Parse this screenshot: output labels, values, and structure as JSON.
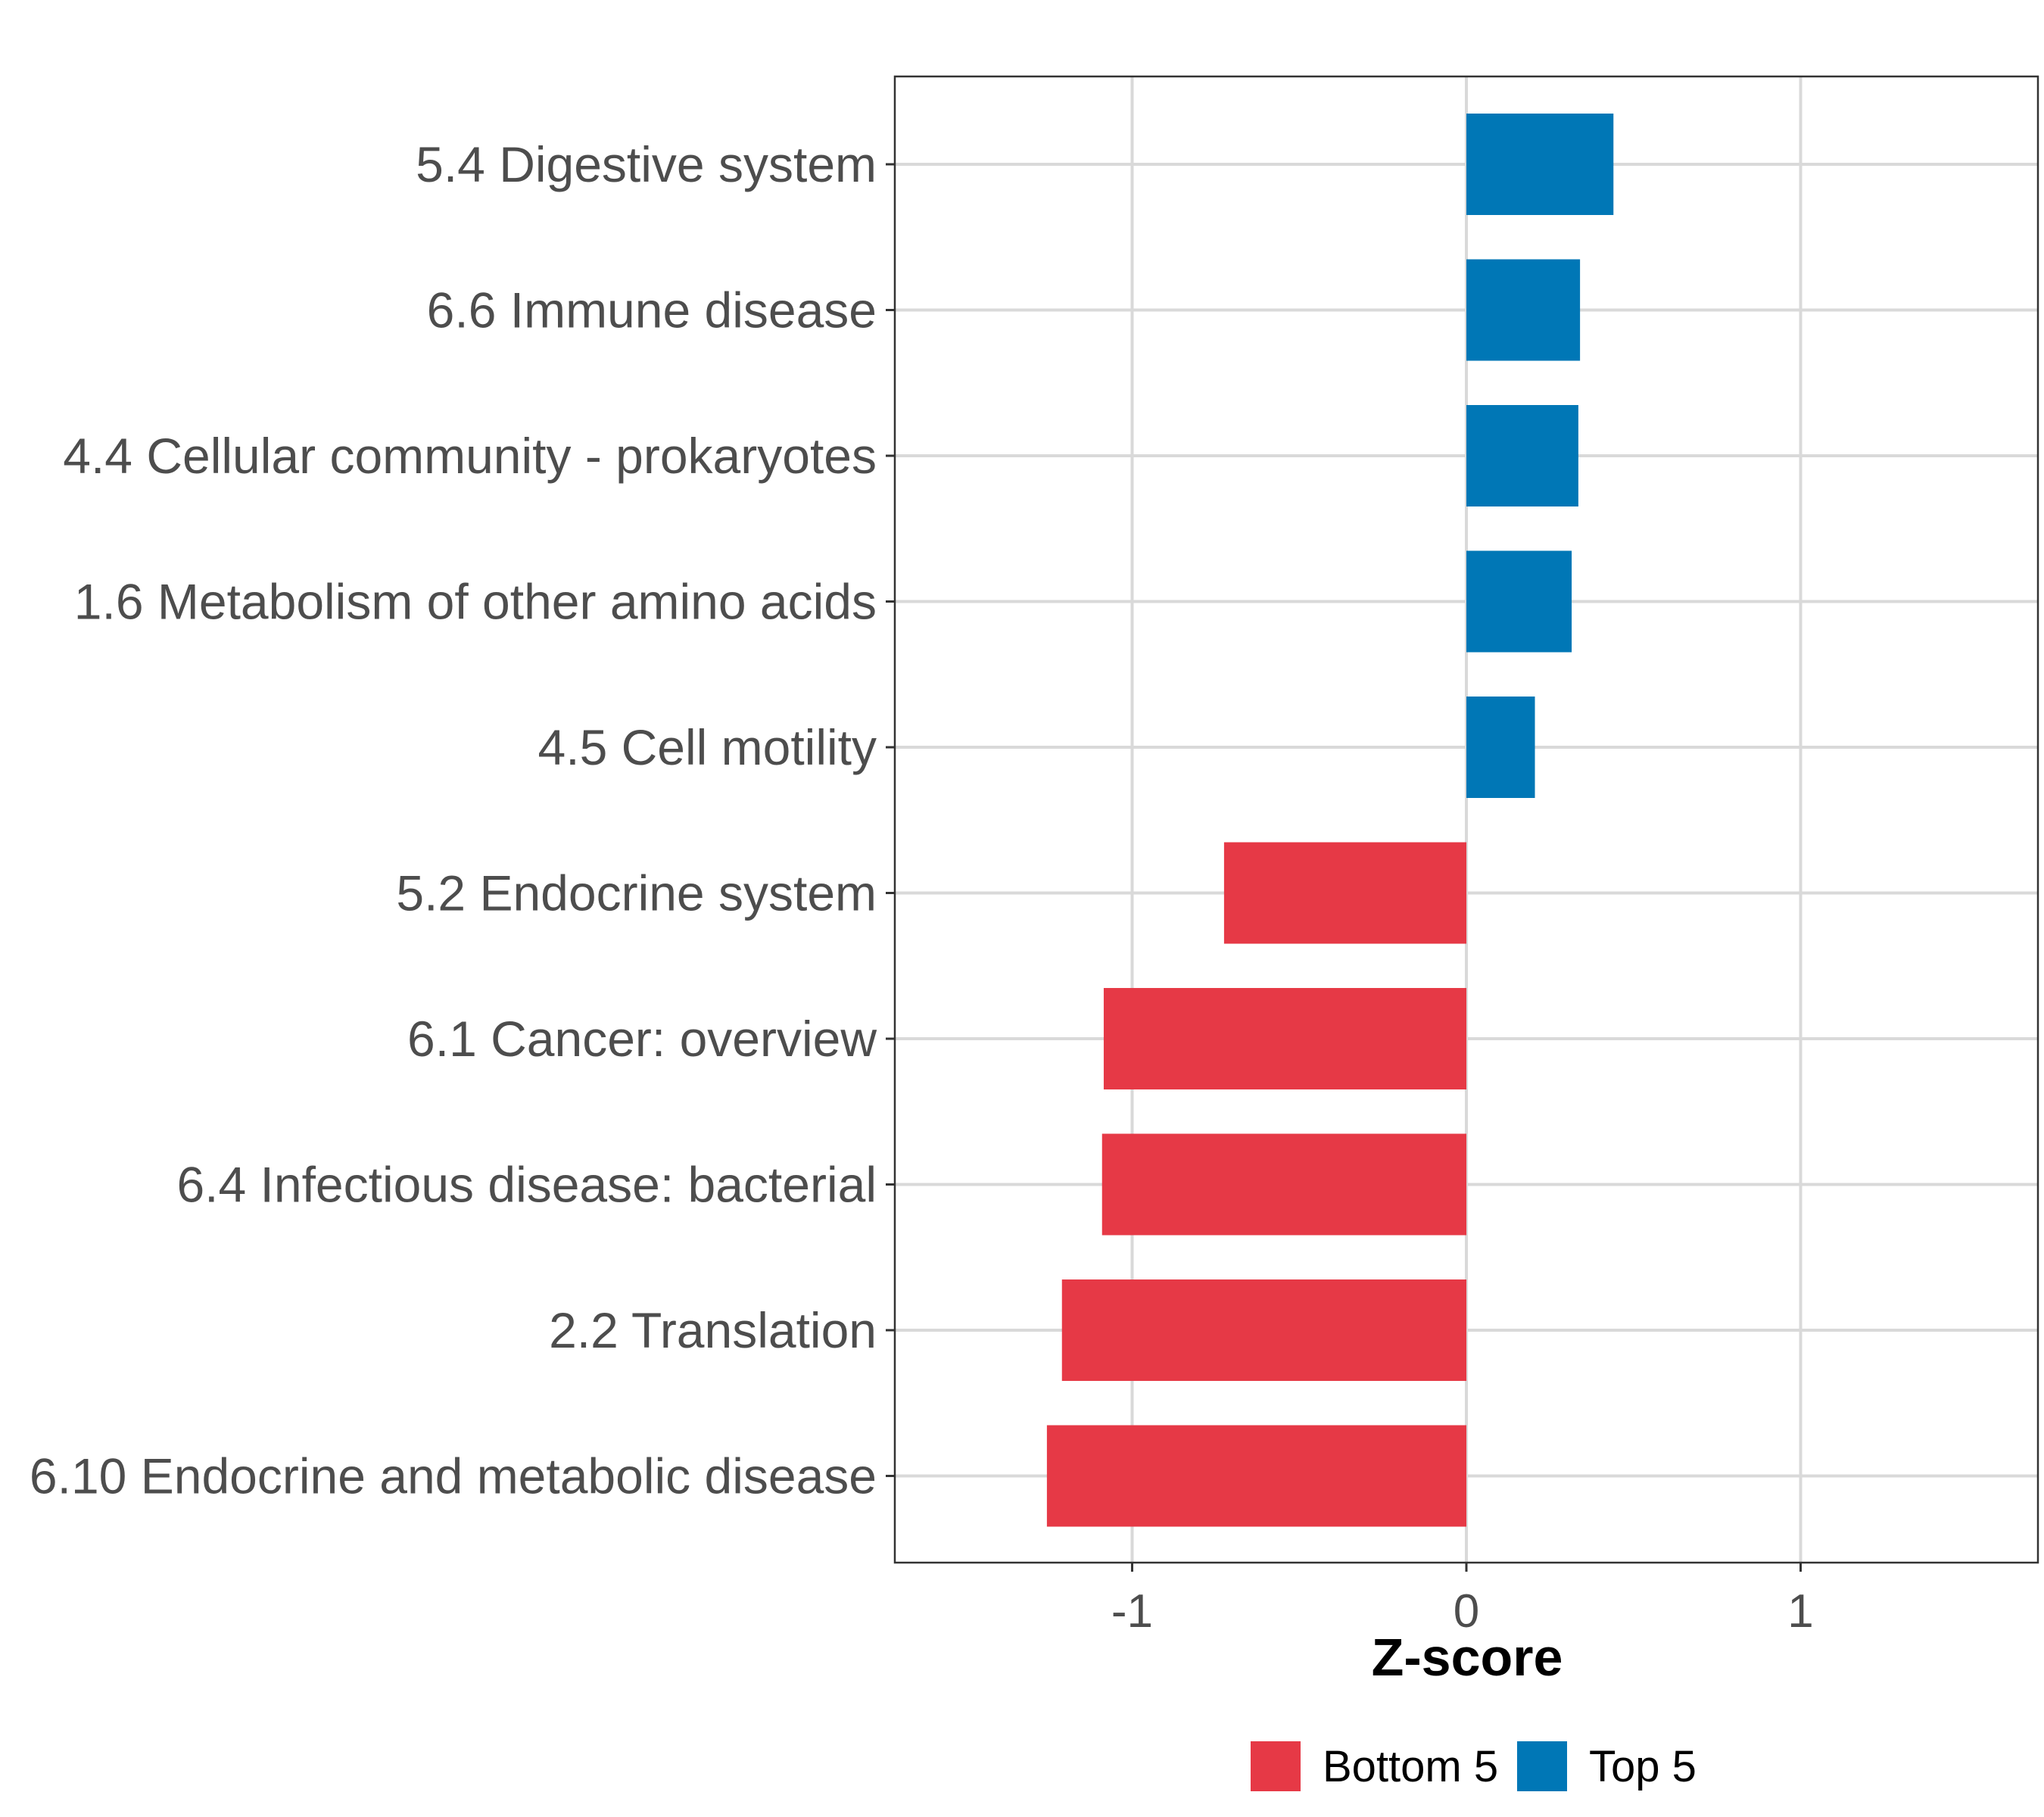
{
  "chart_data": {
    "type": "bar",
    "orientation": "horizontal",
    "categories": [
      "5.4 Digestive system",
      "6.6 Immune disease",
      "4.4 Cellular community - prokaryotes",
      "1.6 Metabolism of other amino acids",
      "4.5 Cell motility",
      "5.2 Endocrine system",
      "6.1 Cancer: overview",
      "6.4 Infectious disease: bacterial",
      "2.2 Translation",
      "6.10 Endocrine and metabolic disease"
    ],
    "values": [
      0.44,
      0.34,
      0.335,
      0.315,
      0.205,
      -0.725,
      -1.085,
      -1.09,
      -1.21,
      -1.255
    ],
    "groups": [
      "Top 5",
      "Top 5",
      "Top 5",
      "Top 5",
      "Top 5",
      "Bottom 5",
      "Bottom 5",
      "Bottom 5",
      "Bottom 5",
      "Bottom 5"
    ],
    "xlabel": "Z-score",
    "ylabel": "",
    "xlim": [
      -1.71,
      1.71
    ],
    "xticks": [
      -1,
      0,
      1
    ],
    "xtick_labels": [
      "-1",
      "0",
      "1"
    ],
    "grid": true,
    "legend": {
      "position": "bottom",
      "entries": [
        {
          "label": "Bottom 5",
          "color": "#e63946"
        },
        {
          "label": "Top 5",
          "color": "#0077b6"
        }
      ]
    }
  }
}
